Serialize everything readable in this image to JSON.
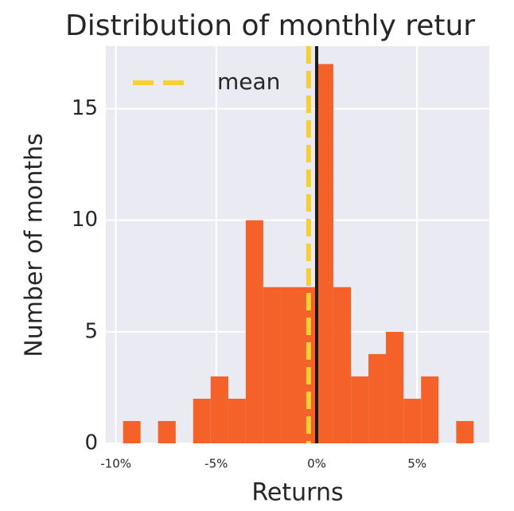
{
  "chart_data": {
    "type": "histogram",
    "title": "Distribution of monthly retur",
    "x_label": "Returns",
    "y_label": "Number of months",
    "bins": [
      -9.64,
      -8.77,
      -7.9,
      -7.02,
      -6.15,
      -5.28,
      -4.4,
      -3.53,
      -2.66,
      -1.78,
      -0.91,
      -0.04,
      0.83,
      1.71,
      2.58,
      3.45,
      4.33,
      5.2,
      6.07,
      6.95,
      7.82
    ],
    "values": [
      1,
      0,
      1,
      0,
      2,
      3,
      2,
      10,
      7,
      7,
      7,
      17,
      7,
      3,
      4,
      5,
      2,
      3,
      0,
      1
    ],
    "color": "#f4622a",
    "mean": -0.4,
    "mean_label": "mean",
    "mean_color": "#f5d033",
    "zero_line": 0,
    "zero_line_color": "#1a1a1a",
    "xlim": [
      -10.5,
      8.6
    ],
    "xticks": [
      {
        "value": -10,
        "label": "-10%"
      },
      {
        "value": -5,
        "label": "-5%"
      },
      {
        "value": 0,
        "label": "0%"
      },
      {
        "value": 5,
        "label": "5%"
      }
    ],
    "ylim": [
      0,
      17.8
    ],
    "yticks": [
      0,
      5,
      10,
      15
    ],
    "grid": true,
    "legend": "upper left"
  }
}
